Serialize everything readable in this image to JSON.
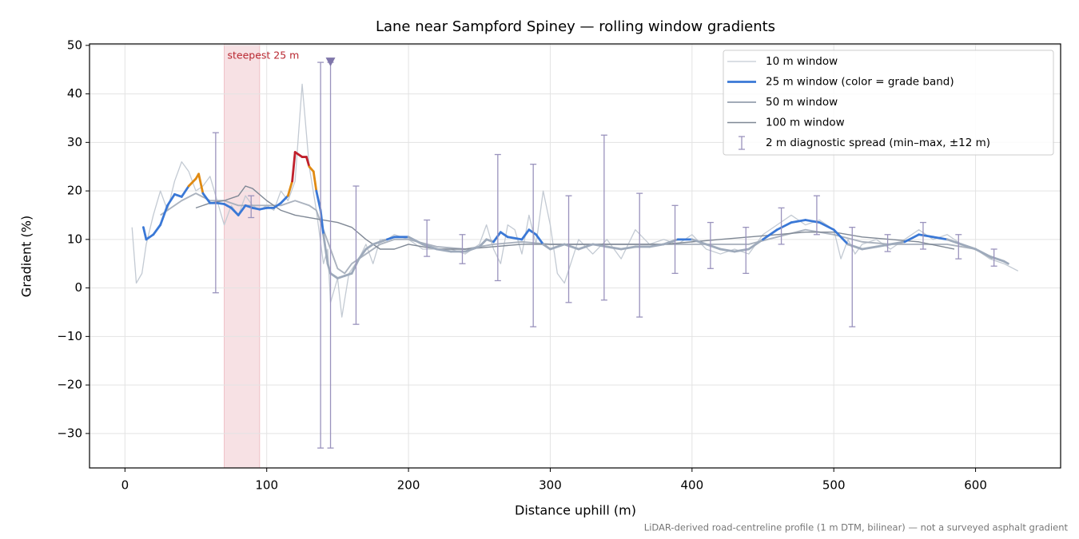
{
  "chart_data": {
    "type": "line",
    "title": "Lane near Sampford Spiney — rolling window gradients",
    "xlabel": "Distance uphill (m)",
    "ylabel": "Gradient (%)",
    "footnote": "LiDAR-derived road-centreline profile (1 m DTM, bilinear) — not a surveyed asphalt gradient",
    "xlim": [
      -25,
      660
    ],
    "ylim": [
      -37.1,
      50.3
    ],
    "xticks": [
      0,
      100,
      200,
      300,
      400,
      500,
      600
    ],
    "yticks": [
      {
        "value": -30,
        "label": "−30"
      },
      {
        "value": -20,
        "label": "−20"
      },
      {
        "value": -10,
        "label": "−10"
      },
      0,
      10,
      20,
      30,
      40,
      50
    ],
    "grid": true,
    "legend": "upper right",
    "series": [
      {
        "name": "10 m window",
        "color": "#c3cad3",
        "x": [
          5,
          8,
          12,
          15,
          20,
          25,
          30,
          35,
          40,
          45,
          50,
          55,
          60,
          65,
          70,
          75,
          80,
          85,
          90,
          95,
          100,
          105,
          110,
          115,
          120,
          125,
          130,
          135,
          140,
          143,
          145,
          150,
          153,
          158,
          165,
          170,
          175,
          180,
          185,
          190,
          200,
          210,
          220,
          230,
          240,
          250,
          255,
          260,
          265,
          270,
          275,
          280,
          285,
          290,
          295,
          300,
          305,
          310,
          320,
          330,
          340,
          350,
          360,
          370,
          380,
          390,
          400,
          410,
          420,
          430,
          440,
          450,
          460,
          470,
          480,
          490,
          500,
          505,
          510,
          515,
          520,
          530,
          540,
          550,
          560,
          570,
          580,
          590,
          600,
          610,
          620,
          630
        ],
        "values": [
          12.5,
          1,
          3,
          9,
          15,
          20,
          16,
          22,
          26,
          24,
          20,
          21,
          23,
          18,
          13,
          17,
          15,
          19,
          17,
          16,
          17,
          16,
          20,
          18,
          22,
          42,
          25,
          16,
          5,
          8,
          -3,
          2,
          -6,
          3,
          6,
          9,
          5,
          10,
          10,
          11,
          10,
          8,
          8,
          8,
          7,
          9,
          13,
          8,
          5,
          13,
          12,
          7,
          15,
          9,
          20,
          13,
          3,
          1,
          10,
          7,
          10,
          6,
          12,
          9,
          10,
          9,
          11,
          8,
          7,
          8,
          7,
          11,
          13,
          15,
          13,
          14,
          12,
          6,
          10,
          7,
          9,
          10,
          8,
          10,
          12,
          10,
          11,
          9,
          8,
          6,
          5,
          3.5
        ]
      },
      {
        "name": "25 m window (color = grade band)",
        "color": "#3a78d6",
        "color_bands": {
          "thresholds": [
            10,
            20,
            25
          ],
          "colors": [
            "#9eaabb",
            "#3a78d6",
            "#e08a12",
            "#c0202c"
          ]
        },
        "x": [
          13,
          15,
          20,
          25,
          30,
          35,
          40,
          45,
          50,
          52,
          55,
          60,
          65,
          70,
          75,
          80,
          85,
          90,
          95,
          100,
          105,
          110,
          115,
          118,
          120,
          125,
          128,
          130,
          133,
          135,
          138,
          140,
          143,
          145,
          150,
          155,
          160,
          165,
          170,
          175,
          180,
          185,
          190,
          200,
          210,
          220,
          230,
          240,
          250,
          255,
          260,
          265,
          270,
          280,
          285,
          290,
          295,
          300,
          310,
          320,
          330,
          340,
          350,
          360,
          370,
          380,
          390,
          400,
          410,
          420,
          430,
          440,
          450,
          460,
          470,
          480,
          490,
          500,
          510,
          520,
          530,
          540,
          550,
          560,
          570,
          580,
          590,
          600,
          610,
          620,
          623
        ],
        "values": [
          12.5,
          10,
          11,
          13,
          17,
          19.3,
          18.8,
          21,
          22.5,
          23.5,
          19.5,
          17.5,
          17.5,
          17.3,
          16.5,
          15,
          17,
          16.5,
          16.2,
          16.5,
          16.5,
          17.5,
          19,
          22,
          28,
          27,
          27,
          25,
          24,
          20,
          16,
          11,
          5,
          3,
          2,
          2.5,
          3,
          6,
          8,
          9,
          9.5,
          10,
          10.5,
          10.5,
          9,
          8,
          7.5,
          7.5,
          8.5,
          10,
          9.5,
          11.5,
          10.5,
          10,
          12,
          11,
          9,
          8,
          9,
          8,
          9,
          8.5,
          8,
          8.5,
          8.5,
          9,
          10,
          10,
          9,
          8,
          7.5,
          8,
          10,
          12,
          13.5,
          14,
          13.5,
          12,
          9,
          8,
          8.5,
          9,
          9.5,
          11,
          10.5,
          10,
          9,
          8,
          6.5,
          5.5,
          5
        ]
      },
      {
        "name": "50 m window",
        "color": "#a2abb8",
        "x": [
          25,
          30,
          40,
          50,
          60,
          70,
          80,
          90,
          100,
          110,
          120,
          130,
          135,
          140,
          145,
          150,
          155,
          160,
          170,
          180,
          190,
          200,
          220,
          240,
          260,
          280,
          300,
          320,
          340,
          360,
          380,
          400,
          420,
          440,
          460,
          480,
          500,
          520,
          540,
          560,
          580,
          600,
          612
        ],
        "values": [
          15,
          16,
          18,
          19.5,
          18,
          18,
          17,
          17,
          17,
          17,
          18,
          17,
          16,
          12,
          8,
          4,
          3,
          5,
          7,
          9,
          10,
          10,
          8.5,
          8,
          9,
          9.5,
          9,
          9,
          9,
          9,
          9,
          9,
          9,
          9,
          10.5,
          12,
          11,
          9.5,
          9,
          9,
          9,
          8,
          6
        ]
      },
      {
        "name": "100 m window",
        "color": "#7f8895",
        "x": [
          50,
          60,
          70,
          80,
          85,
          90,
          100,
          110,
          120,
          130,
          140,
          150,
          160,
          170,
          180,
          190,
          200,
          220,
          240,
          260,
          280,
          300,
          320,
          340,
          360,
          380,
          400,
          420,
          440,
          460,
          480,
          500,
          520,
          540,
          560,
          585
        ],
        "values": [
          16.5,
          17.5,
          18,
          19,
          21,
          20.5,
          18,
          16,
          15,
          14.5,
          14,
          13.5,
          12.5,
          10,
          8,
          8,
          9,
          8,
          8,
          8.5,
          9,
          9,
          9,
          9,
          9,
          9,
          9.5,
          10,
          10.5,
          11,
          11.5,
          11.5,
          10.5,
          10,
          9.5,
          8
        ]
      }
    ],
    "error_bars": {
      "name": "2 m diagnostic spread (min–max, ±12 m)",
      "color": "#9a93bd",
      "x": [
        64,
        89,
        138,
        145,
        163,
        213,
        238,
        263,
        288,
        313,
        338,
        363,
        388,
        413,
        438,
        463,
        488,
        513,
        538,
        563,
        588,
        613
      ],
      "low": [
        -1,
        14.5,
        -33,
        -33,
        -7.5,
        6.5,
        5,
        1.5,
        -8,
        -3,
        -2.5,
        -6,
        3,
        4,
        3,
        9,
        11,
        -8,
        7.5,
        8,
        6,
        4.5
      ],
      "high": [
        32,
        19,
        46.5,
        46.5,
        21,
        14,
        11,
        27.5,
        25.5,
        19,
        31.5,
        19.5,
        17,
        13.5,
        12.5,
        16.5,
        19,
        12.5,
        11,
        13.5,
        11,
        8
      ]
    },
    "highlight": {
      "label": "steepest 25 m",
      "x": [
        70,
        95
      ],
      "color": "#e7a3ab"
    },
    "marker": {
      "x": 145,
      "y": 46.5,
      "color": "#7f76aa"
    }
  }
}
